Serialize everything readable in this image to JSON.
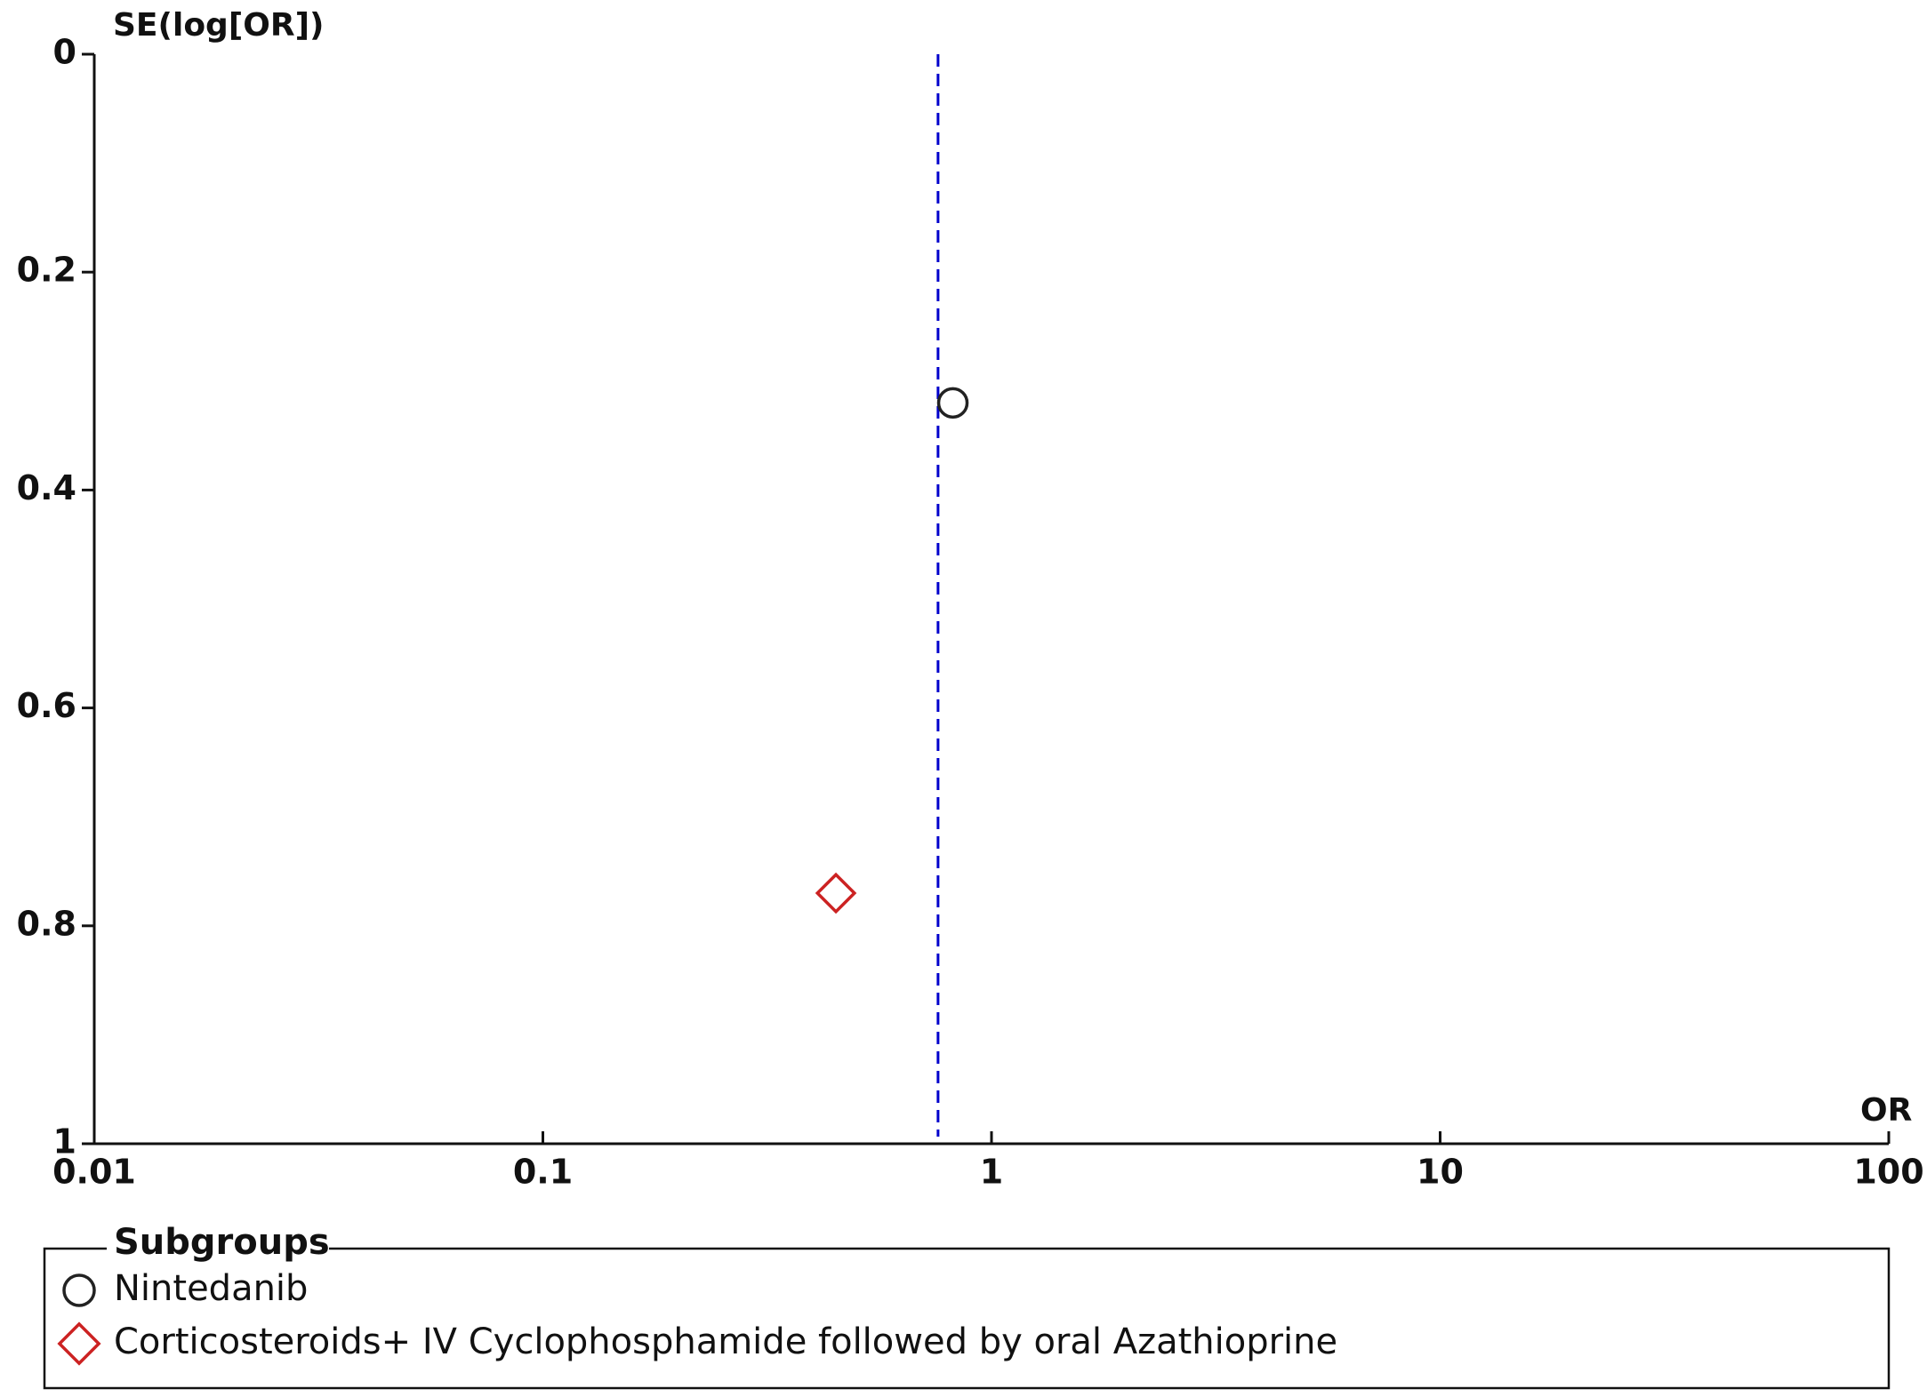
{
  "chart_data": {
    "type": "scatter",
    "x_label": "OR",
    "y_label": "SE(log[OR])",
    "x_scale": "log",
    "xlim": [
      0.01,
      100
    ],
    "xticks": [
      0.01,
      0.1,
      1,
      10,
      100
    ],
    "ylim": [
      0,
      1
    ],
    "yticks": [
      0,
      0.2,
      0.4,
      0.6,
      0.8,
      1
    ],
    "y_inverted": true,
    "summary_line": {
      "x": 0.76,
      "color": "#0000cc"
    },
    "legend_title": "Subgroups",
    "series": [
      {
        "name": "Nintedanib",
        "color": "#222222",
        "marker": "circle",
        "x": [
          0.82
        ],
        "values": [
          0.32
        ]
      },
      {
        "name": "Corticosteroids+ IV Cyclophosphamide followed by oral Azathioprine",
        "color": "#cc2222",
        "marker": "diamond",
        "x": [
          0.45
        ],
        "values": [
          0.77
        ]
      }
    ]
  }
}
